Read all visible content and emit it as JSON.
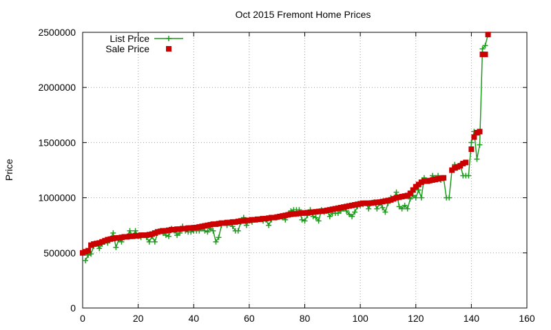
{
  "chart_data": {
    "type": "line",
    "title": "Oct 2015 Fremont Home Prices",
    "xlabel": "",
    "ylabel": "Price",
    "xlim": [
      0,
      160
    ],
    "ylim": [
      0,
      2500000
    ],
    "x_ticks": [
      "0",
      "20",
      "40",
      "60",
      "80",
      "100",
      "120",
      "140",
      "160"
    ],
    "y_ticks": [
      "0",
      "500000",
      "1000000",
      "1500000",
      "2000000",
      "2500000"
    ],
    "grid": true,
    "legend_position": "top-left",
    "series": [
      {
        "name": "List Price",
        "style": "line with plus markers",
        "color": "#1a9c1a",
        "values": [
          430000,
          480000,
          490000,
          560000,
          580000,
          540000,
          580000,
          600000,
          590000,
          630000,
          680000,
          550000,
          620000,
          600000,
          640000,
          650000,
          700000,
          650000,
          700000,
          650000,
          640000,
          660000,
          640000,
          600000,
          650000,
          600000,
          680000,
          700000,
          680000,
          660000,
          650000,
          720000,
          700000,
          660000,
          680000,
          740000,
          700000,
          690000,
          690000,
          700000,
          700000,
          700000,
          720000,
          700000,
          690000,
          720000,
          700000,
          600000,
          640000,
          750000,
          770000,
          750000,
          770000,
          740000,
          700000,
          700000,
          780000,
          820000,
          750000,
          790000,
          780000,
          800000,
          800000,
          810000,
          790000,
          800000,
          750000,
          800000,
          820000,
          820000,
          830000,
          820000,
          800000,
          850000,
          880000,
          890000,
          890000,
          890000,
          800000,
          790000,
          840000,
          890000,
          830000,
          820000,
          790000,
          890000,
          870000,
          880000,
          830000,
          860000,
          860000,
          860000,
          880000,
          900000,
          880000,
          850000,
          830000,
          870000,
          920000,
          930000,
          940000,
          950000,
          900000,
          950000,
          960000,
          900000,
          950000,
          910000,
          870000,
          950000,
          1000000,
          990000,
          1050000,
          920000,
          900000,
          930000,
          900000,
          990000,
          1020000,
          1000000,
          1070000,
          1000000,
          1180000,
          1150000,
          1150000,
          1200000,
          1180000,
          1200000,
          1160000,
          1180000,
          1000000,
          1000000,
          1250000,
          1300000,
          1270000,
          1300000,
          1200000,
          1200000,
          1200000,
          1500000,
          1600000,
          1350000,
          1480000,
          2350000,
          2380000,
          2480000
        ],
        "x": [
          1,
          2,
          3,
          4,
          5,
          6,
          7,
          8,
          9,
          10,
          11,
          12,
          13,
          14,
          15,
          16,
          17,
          18,
          19,
          20,
          21,
          22,
          23,
          24,
          25,
          26,
          27,
          28,
          29,
          30,
          31,
          32,
          33,
          34,
          35,
          36,
          37,
          38,
          39,
          40,
          41,
          42,
          43,
          44,
          45,
          46,
          47,
          48,
          49,
          50,
          51,
          52,
          53,
          54,
          55,
          56,
          57,
          58,
          59,
          60,
          61,
          62,
          63,
          64,
          65,
          66,
          67,
          68,
          69,
          70,
          71,
          72,
          73,
          74,
          75,
          76,
          77,
          78,
          79,
          80,
          81,
          82,
          83,
          84,
          85,
          86,
          87,
          88,
          89,
          90,
          91,
          92,
          93,
          94,
          95,
          96,
          97,
          98,
          99,
          100,
          101,
          102,
          103,
          104,
          105,
          106,
          107,
          108,
          109,
          110,
          111,
          112,
          113,
          114,
          115,
          116,
          117,
          118,
          119,
          120,
          121,
          122,
          123,
          124,
          125,
          126,
          127,
          128,
          129,
          130,
          131,
          132,
          133,
          134,
          135,
          136,
          137,
          138,
          139,
          140,
          141,
          142,
          143,
          144,
          145,
          146
        ]
      },
      {
        "name": "Sale Price",
        "style": "square markers",
        "color": "#cc0000",
        "values": [
          500000,
          510000,
          520000,
          570000,
          580000,
          585000,
          590000,
          600000,
          610000,
          620000,
          625000,
          630000,
          635000,
          635000,
          640000,
          645000,
          645000,
          650000,
          650000,
          655000,
          655000,
          660000,
          660000,
          660000,
          665000,
          670000,
          680000,
          690000,
          695000,
          700000,
          700000,
          705000,
          710000,
          710000,
          715000,
          715000,
          720000,
          720000,
          725000,
          725000,
          728000,
          730000,
          735000,
          740000,
          745000,
          750000,
          755000,
          760000,
          760000,
          765000,
          770000,
          770000,
          775000,
          775000,
          780000,
          780000,
          785000,
          790000,
          790000,
          795000,
          795000,
          800000,
          800000,
          805000,
          805000,
          810000,
          810000,
          815000,
          820000,
          820000,
          825000,
          830000,
          835000,
          840000,
          845000,
          850000,
          852000,
          855000,
          858000,
          860000,
          862000,
          865000,
          867000,
          870000,
          872000,
          875000,
          878000,
          880000,
          885000,
          890000,
          895000,
          900000,
          905000,
          910000,
          915000,
          920000,
          925000,
          930000,
          935000,
          940000,
          945000,
          950000,
          950000,
          950000,
          952000,
          955000,
          958000,
          960000,
          965000,
          970000,
          975000,
          980000,
          990000,
          1000000,
          1005000,
          1010000,
          1015000,
          1020000,
          1040000,
          1070000,
          1100000,
          1120000,
          1140000,
          1150000,
          1150000,
          1155000,
          1160000,
          1165000,
          1170000,
          1175000,
          1180000,
          1250000,
          1270000,
          1280000,
          1290000,
          1310000,
          1320000,
          1440000,
          1550000,
          1590000,
          1600000,
          2300000,
          2300000,
          2480000
        ],
        "x": [
          0,
          1,
          2,
          3,
          4,
          5,
          6,
          7,
          8,
          9,
          10,
          11,
          12,
          13,
          14,
          15,
          16,
          17,
          18,
          19,
          20,
          21,
          22,
          23,
          24,
          25,
          26,
          27,
          28,
          29,
          30,
          31,
          32,
          33,
          34,
          35,
          36,
          37,
          38,
          39,
          40,
          41,
          42,
          43,
          44,
          45,
          46,
          47,
          48,
          49,
          50,
          51,
          52,
          53,
          54,
          55,
          56,
          57,
          58,
          59,
          60,
          61,
          62,
          63,
          64,
          65,
          66,
          67,
          68,
          69,
          70,
          71,
          72,
          73,
          74,
          75,
          76,
          77,
          78,
          79,
          80,
          81,
          82,
          83,
          84,
          85,
          86,
          87,
          88,
          89,
          90,
          91,
          92,
          93,
          94,
          95,
          96,
          97,
          98,
          99,
          100,
          101,
          102,
          103,
          104,
          105,
          106,
          107,
          108,
          109,
          110,
          111,
          112,
          113,
          114,
          115,
          116,
          117,
          118,
          119,
          120,
          121,
          122,
          123,
          124,
          125,
          126,
          127,
          128,
          129,
          130,
          133,
          134,
          135,
          136,
          137,
          138,
          140,
          141,
          142,
          143,
          144,
          145,
          146
        ]
      }
    ]
  }
}
